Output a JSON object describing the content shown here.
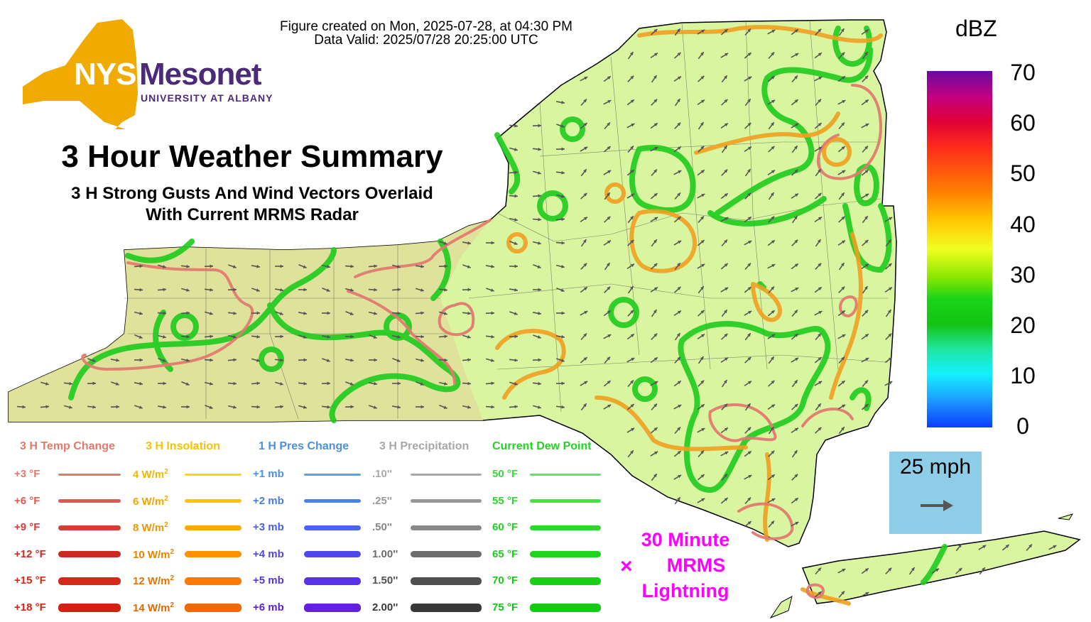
{
  "header": {
    "created_line": "Figure created on Mon, 2025-07-28, at 04:30 PM",
    "valid_line": "Data Valid: 2025/07/28 20:25:00 UTC"
  },
  "logo": {
    "nys": "NYS",
    "mesonet": "Mesonet",
    "university": "UNIVERSITY AT ALBANY",
    "state_color": "#f0aa00",
    "brand_color": "#4b2a7a"
  },
  "title": {
    "main": "3 Hour Weather Summary",
    "sub_line1": "3 H Strong Gusts And Wind Vectors Overlaid",
    "sub_line2": "With Current MRMS Radar"
  },
  "colorbar": {
    "unit": "dBZ",
    "ticks": [
      "70",
      "60",
      "50",
      "40",
      "30",
      "20",
      "10",
      "0"
    ]
  },
  "scale": {
    "label": "25 mph",
    "icon": "arrow-right-icon"
  },
  "lightning": {
    "line1": "30 Minute",
    "line2": "MRMS",
    "line3": "Lightning",
    "marker": "×",
    "color": "#ff00ff"
  },
  "legend": {
    "temp": {
      "heading": "3 H Temp Change",
      "heading_color": "#e5786e",
      "rows": [
        {
          "label": "+3 °F",
          "color": "#e5786e",
          "text_color": "#e5786e"
        },
        {
          "label": "+6 °F",
          "color": "#e05a52",
          "text_color": "#e05a52"
        },
        {
          "label": "+9 °F",
          "color": "#d73c34",
          "text_color": "#d73c34"
        },
        {
          "label": "+12 °F",
          "color": "#cc2a20",
          "text_color": "#cc2a20"
        },
        {
          "label": "+15 °F",
          "color": "#d42818",
          "text_color": "#d42818"
        },
        {
          "label": "+18 °F",
          "color": "#d42010",
          "text_color": "#d42010"
        }
      ]
    },
    "insolation": {
      "heading": "3 H Insolation",
      "heading_color": "#f5c400",
      "rows": [
        {
          "label": "4 W/m",
          "sup": "2",
          "color": "#ffd800",
          "text_color": "#f0b800"
        },
        {
          "label": "6 W/m",
          "sup": "2",
          "color": "#ffc400",
          "text_color": "#f0a800"
        },
        {
          "label": "8 W/m",
          "sup": "2",
          "color": "#ffa800",
          "text_color": "#ec9800"
        },
        {
          "label": "10 W/m",
          "sup": "2",
          "color": "#ff9000",
          "text_color": "#e88400"
        },
        {
          "label": "12 W/m",
          "sup": "2",
          "color": "#ff7800",
          "text_color": "#e47400"
        },
        {
          "label": "14 W/m",
          "sup": "2",
          "color": "#f06800",
          "text_color": "#e06800"
        }
      ]
    },
    "pressure": {
      "heading": "1 H Pres Change",
      "heading_color": "#4a90e2",
      "rows": [
        {
          "label": "+1 mb",
          "color": "#58a0f0",
          "text_color": "#4a90e2"
        },
        {
          "label": "+2 mb",
          "color": "#4a82f0",
          "text_color": "#4a7ce0"
        },
        {
          "label": "+3 mb",
          "color": "#4a64f0",
          "text_color": "#4a60dc"
        },
        {
          "label": "+4 mb",
          "color": "#5048ec",
          "text_color": "#5048d8"
        },
        {
          "label": "+5 mb",
          "color": "#5a30e8",
          "text_color": "#5a34d4"
        },
        {
          "label": "+6 mb",
          "color": "#6420e0",
          "text_color": "#6020cc"
        }
      ]
    },
    "precip": {
      "heading": "3 H Precipitation",
      "heading_color": "#a8a8a8",
      "rows": [
        {
          "label": ".10''",
          "color": "#a8a8a8",
          "text_color": "#a8a8a8"
        },
        {
          "label": ".25''",
          "color": "#989898",
          "text_color": "#989898"
        },
        {
          "label": ".50''",
          "color": "#888888",
          "text_color": "#888888"
        },
        {
          "label": "1.00''",
          "color": "#6c6c6c",
          "text_color": "#6c6c6c"
        },
        {
          "label": "1.50''",
          "color": "#505050",
          "text_color": "#505050"
        },
        {
          "label": "2.00''",
          "color": "#383838",
          "text_color": "#383838"
        }
      ]
    },
    "dewpoint": {
      "heading": "Current Dew Point",
      "heading_color": "#22d422",
      "rows": [
        {
          "label": "50 °F",
          "color": "#5ce65c",
          "text_color": "#3cd83c"
        },
        {
          "label": "55 °F",
          "color": "#44e044",
          "text_color": "#30d430"
        },
        {
          "label": "60 °F",
          "color": "#2ad82a",
          "text_color": "#22d022"
        },
        {
          "label": "65 °F",
          "color": "#1ed41e",
          "text_color": "#1ccc1c"
        },
        {
          "label": "70 °F",
          "color": "#18d018",
          "text_color": "#18c818"
        },
        {
          "label": "75 °F",
          "color": "#12cc12",
          "text_color": "#14c414"
        }
      ]
    }
  },
  "map": {
    "land_color": "#d9f5a0",
    "west_color": "#dfe09a",
    "dewpoint_contour_color": "#1ecb1e",
    "insolation_contour_color": "#f0a020",
    "temp_contour_color": "#e27a70",
    "vector_color": "#555555"
  }
}
